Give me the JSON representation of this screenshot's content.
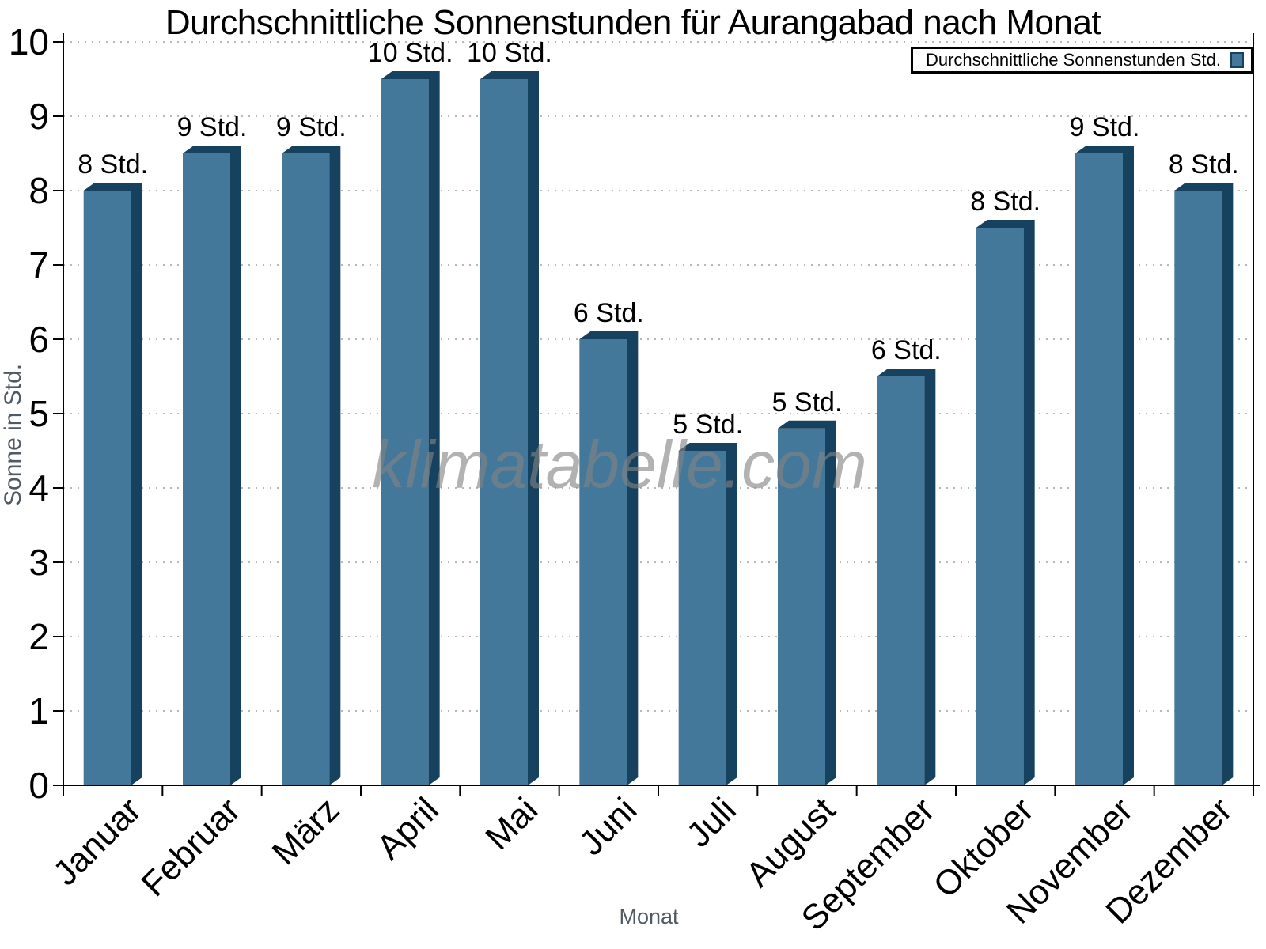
{
  "chart_data": {
    "type": "bar",
    "title": "Durchschnittliche Sonnenstunden für Aurangabad nach Monat",
    "categories": [
      "Januar",
      "Februar",
      "März",
      "April",
      "Mai",
      "Juni",
      "Juli",
      "August",
      "September",
      "Oktober",
      "November",
      "Dezember"
    ],
    "values": [
      8,
      8.5,
      8.5,
      9.5,
      9.5,
      6,
      4.5,
      4.8,
      5.5,
      7.5,
      8.5,
      8
    ],
    "bar_labels": [
      "8 Std.",
      "9 Std.",
      "9 Std.",
      "10 Std.",
      "10 Std.",
      "6 Std.",
      "5 Std.",
      "5 Std.",
      "6 Std.",
      "8 Std.",
      "9 Std.",
      "8 Std."
    ],
    "xlabel": "Monat",
    "ylabel": "Sonne in Std.",
    "ylim": [
      0,
      10
    ],
    "yticks": [
      0,
      1,
      2,
      3,
      4,
      5,
      6,
      7,
      8,
      9,
      10
    ],
    "grid": "horizontal-dotted",
    "legend": {
      "label": "Durchschnittliche Sonnenstunden Std.",
      "position": "top-right"
    },
    "watermark": "klimatabelle.com",
    "colors": {
      "bar_face": "#44789b",
      "bar_shade": "#16425f",
      "grid": "#b8b8b8",
      "axis": "#000000",
      "axis_title": "#505a64",
      "watermark": "rgba(130,130,130,0.62)"
    }
  }
}
